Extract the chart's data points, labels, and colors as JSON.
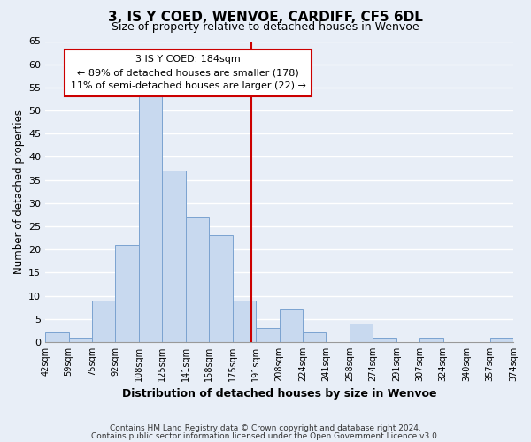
{
  "title": "3, IS Y COED, WENVOE, CARDIFF, CF5 6DL",
  "subtitle": "Size of property relative to detached houses in Wenvoe",
  "xlabel": "Distribution of detached houses by size in Wenvoe",
  "ylabel": "Number of detached properties",
  "bin_labels": [
    "42sqm",
    "59sqm",
    "75sqm",
    "92sqm",
    "108sqm",
    "125sqm",
    "141sqm",
    "158sqm",
    "175sqm",
    "191sqm",
    "208sqm",
    "224sqm",
    "241sqm",
    "258sqm",
    "274sqm",
    "291sqm",
    "307sqm",
    "324sqm",
    "340sqm",
    "357sqm",
    "374sqm"
  ],
  "bar_values": [
    2,
    1,
    9,
    21,
    53,
    37,
    27,
    23,
    9,
    3,
    7,
    2,
    0,
    4,
    1,
    0,
    1,
    0,
    0,
    1
  ],
  "bar_color": "#c8d9ef",
  "bar_edge_color": "#7ba3d0",
  "ylim": [
    0,
    65
  ],
  "yticks": [
    0,
    5,
    10,
    15,
    20,
    25,
    30,
    35,
    40,
    45,
    50,
    55,
    60,
    65
  ],
  "property_line_x": 8.82,
  "property_line_color": "#cc0000",
  "annotation_title": "3 IS Y COED: 184sqm",
  "annotation_line1": "← 89% of detached houses are smaller (178)",
  "annotation_line2": "11% of semi-detached houses are larger (22) →",
  "annotation_box_color": "#ffffff",
  "annotation_box_edge": "#cc0000",
  "footer1": "Contains HM Land Registry data © Crown copyright and database right 2024.",
  "footer2": "Contains public sector information licensed under the Open Government Licence v3.0.",
  "background_color": "#e8eef7",
  "grid_color": "#ffffff"
}
